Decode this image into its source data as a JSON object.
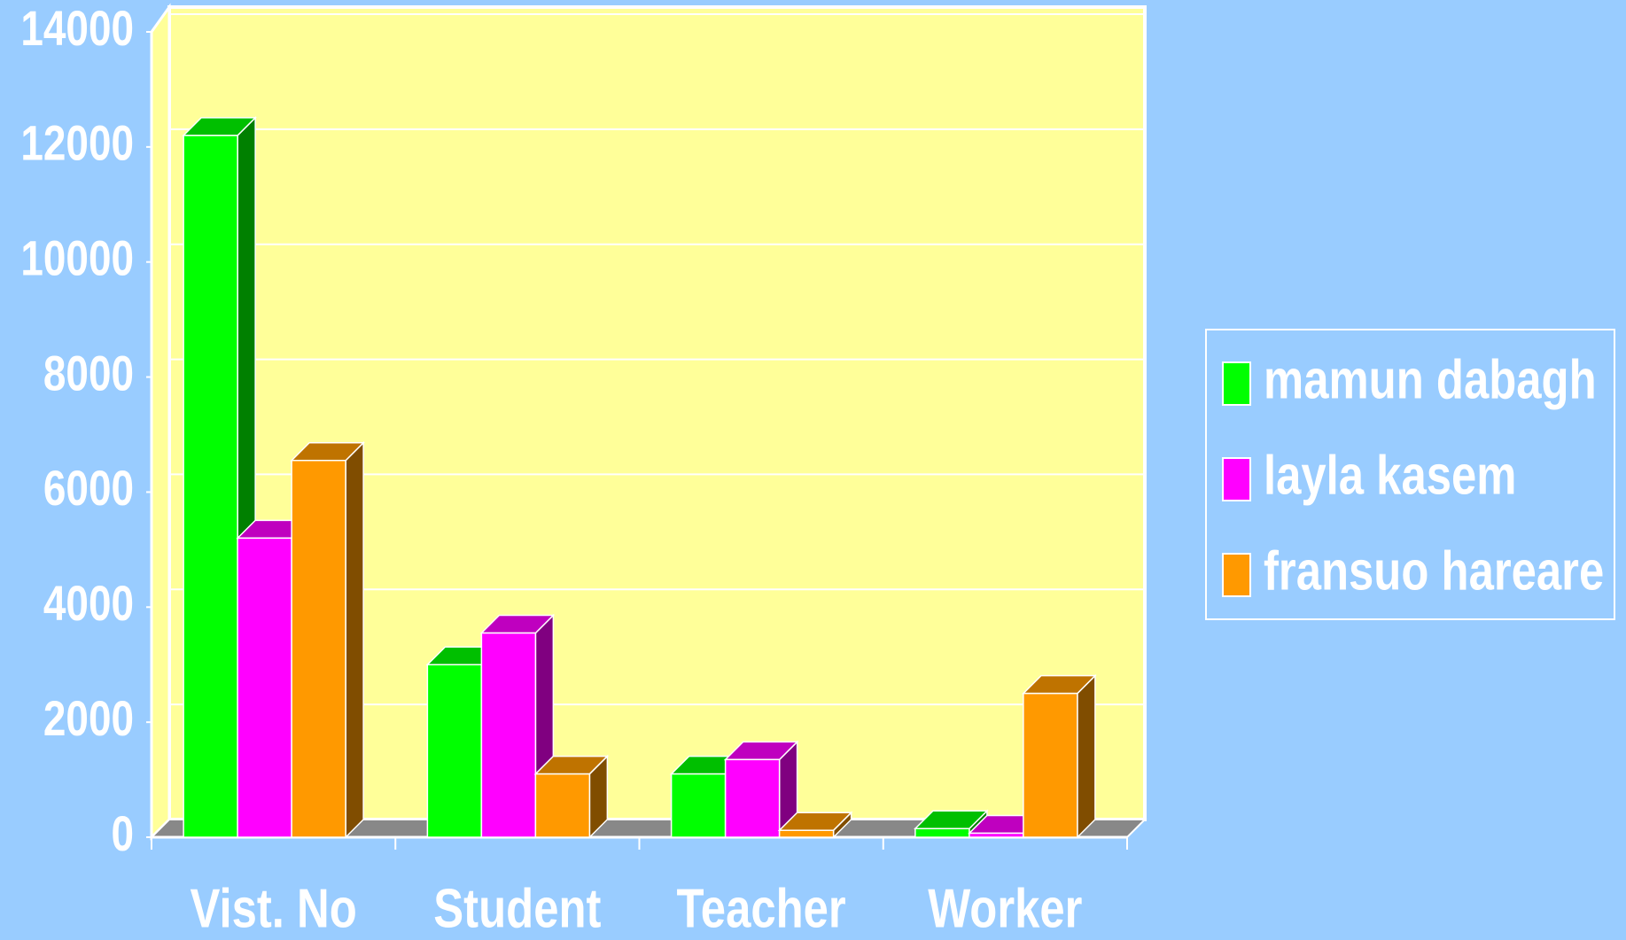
{
  "chart_data": {
    "type": "bar3d",
    "categories": [
      "Vist. No",
      "Student",
      "Teacher",
      "Worker"
    ],
    "series": [
      {
        "name": "mamun dabagh",
        "color": "#00ff00",
        "values": [
          12200,
          3000,
          1100,
          150
        ]
      },
      {
        "name": "layla  kasem",
        "color": "#ff00ff",
        "values": [
          5200,
          3550,
          1350,
          70
        ]
      },
      {
        "name": "fransuo hareare",
        "color": "#ff9900",
        "values": [
          6550,
          1100,
          120,
          2500
        ]
      }
    ],
    "ylim": [
      0,
      14000
    ],
    "yticks": [
      0,
      2000,
      4000,
      6000,
      8000,
      10000,
      12000,
      14000
    ],
    "grid": true,
    "legend": "right"
  }
}
